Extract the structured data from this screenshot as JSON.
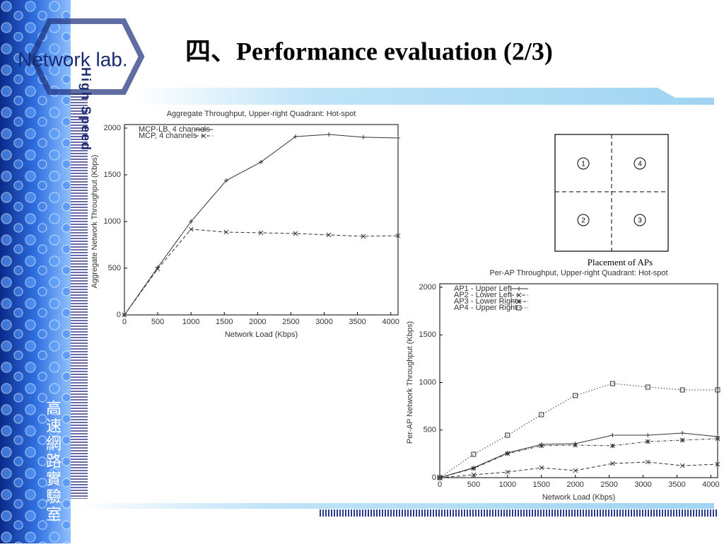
{
  "slide": {
    "title": "四、Performance evaluation (2/3)",
    "logo": "Network lab.",
    "logo_vertical": "High Speed",
    "side_text": "高速網路實驗室"
  },
  "diagram": {
    "labels": [
      "1",
      "4",
      "2",
      "3"
    ],
    "caption": "Placement of APs"
  },
  "chart_data": [
    {
      "type": "line",
      "title": "Aggregate Throughput, Upper-right Quadrant: Hot-spot",
      "x_label": "Network Load (Kbps)",
      "y_label": "Aggregate Network Throughput (Kbps)",
      "x": [
        0,
        500,
        1000,
        1530,
        2050,
        2570,
        3070,
        3590,
        4110
      ],
      "xlim": [
        0,
        4110
      ],
      "xticks": [
        0,
        500,
        1000,
        1500,
        2000,
        2500,
        3000,
        3500,
        4000
      ],
      "ylim": [
        0,
        2000
      ],
      "yticks": [
        0,
        500,
        1000,
        1500,
        2000
      ],
      "legend": "upper left",
      "series": [
        {
          "name": "MCP-LB, 4 channels",
          "color": "#333333",
          "dash": "solid",
          "marker": "plus",
          "values": [
            0,
            508,
            1000,
            1439,
            1636,
            1909,
            1932,
            1902,
            1894
          ]
        },
        {
          "name": "MCP, 4 channels",
          "color": "#333333",
          "dash": "dashed",
          "marker": "cross",
          "values": [
            0,
            492,
            917,
            886,
            879,
            871,
            856,
            841,
            848
          ]
        }
      ]
    },
    {
      "type": "line",
      "title": "Per-AP Throughput, Upper-right Quadrant: Hot-spot",
      "x_label": "Network Load (Kbps)",
      "y_label": "Per-AP Network Throughput (Kbps)",
      "x": [
        0,
        500,
        1000,
        1500,
        2000,
        2550,
        3070,
        3580,
        4100
      ],
      "xlim": [
        0,
        4100
      ],
      "xticks": [
        0,
        500,
        1000,
        1500,
        2000,
        2500,
        3000,
        3500,
        4000
      ],
      "ylim": [
        0,
        2000
      ],
      "yticks": [
        0,
        500,
        1000,
        1500,
        2000
      ],
      "legend": "upper left",
      "series": [
        {
          "name": "AP1 - Upper Left",
          "color": "#333333",
          "dash": "solid",
          "marker": "plus",
          "values": [
            0,
            104,
            260,
            349,
            357,
            446,
            446,
            468,
            431
          ]
        },
        {
          "name": "AP2 - Lower Left",
          "color": "#333333",
          "dash": "dashed",
          "marker": "cross",
          "values": [
            0,
            30,
            59,
            104,
            74,
            149,
            164,
            126,
            141
          ]
        },
        {
          "name": "AP3 - Lower Right",
          "color": "#333333",
          "dash": "dashdot",
          "marker": "star",
          "values": [
            0,
            97,
            253,
            335,
            342,
            335,
            379,
            394,
            409
          ]
        },
        {
          "name": "AP4 - Upper Right",
          "color": "#333333",
          "dash": "dotted",
          "marker": "square",
          "values": [
            0,
            245,
            446,
            662,
            862,
            989,
            952,
            922,
            922
          ]
        }
      ]
    }
  ]
}
